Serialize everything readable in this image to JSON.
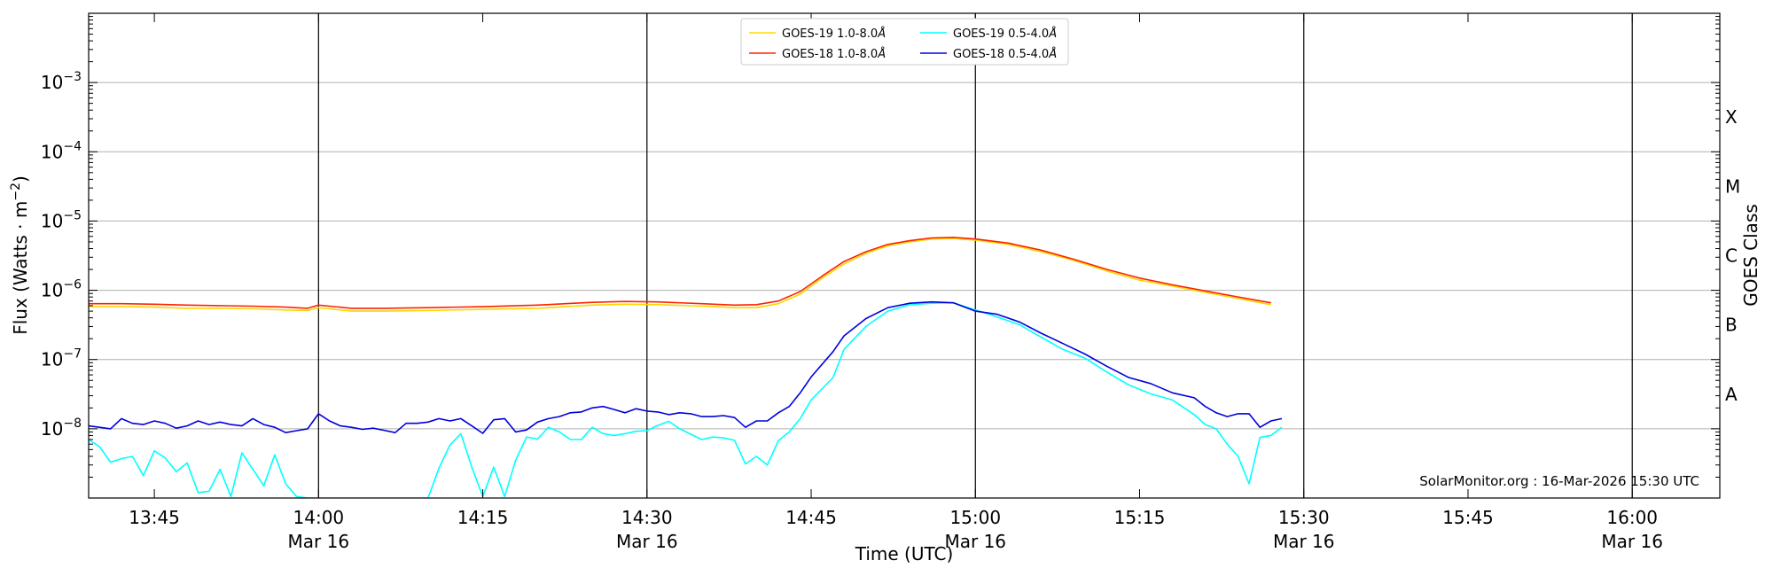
{
  "chart_data": {
    "type": "line",
    "xlabel": "Time (UTC)",
    "ylabel_base": "Flux (Watts · m",
    "ylabel_sup": "−2",
    "ylabel_close": ")",
    "right_ylabel": "GOES Class",
    "yscale": "log",
    "ylim": [
      1e-09,
      0.01
    ],
    "xlim": [
      "13:39",
      "16:08"
    ],
    "y_ticks": [
      {
        "value": 0.001,
        "label": "10",
        "sup": "−3"
      },
      {
        "value": 0.0001,
        "label": "10",
        "sup": "−4"
      },
      {
        "value": 1e-05,
        "label": "10",
        "sup": "−5"
      },
      {
        "value": 1e-06,
        "label": "10",
        "sup": "−6"
      },
      {
        "value": 1e-07,
        "label": "10",
        "sup": "−7"
      },
      {
        "value": 1e-08,
        "label": "10",
        "sup": "−8"
      }
    ],
    "x_ticks": [
      {
        "time": "13:45",
        "label": "13:45",
        "sublabel": ""
      },
      {
        "time": "14:00",
        "label": "14:00",
        "sublabel": "Mar 16"
      },
      {
        "time": "14:15",
        "label": "14:15",
        "sublabel": ""
      },
      {
        "time": "14:30",
        "label": "14:30",
        "sublabel": "Mar 16"
      },
      {
        "time": "14:45",
        "label": "14:45",
        "sublabel": ""
      },
      {
        "time": "15:00",
        "label": "15:00",
        "sublabel": "Mar 16"
      },
      {
        "time": "15:15",
        "label": "15:15",
        "sublabel": ""
      },
      {
        "time": "15:30",
        "label": "15:30",
        "sublabel": "Mar 16"
      },
      {
        "time": "15:45",
        "label": "15:45",
        "sublabel": ""
      },
      {
        "time": "16:00",
        "label": "16:00",
        "sublabel": "Mar 16"
      }
    ],
    "vertical_lines": [
      "14:00",
      "14:30",
      "15:00",
      "15:30",
      "16:00"
    ],
    "classes": [
      {
        "label": "X",
        "value": 0.0001
      },
      {
        "label": "M",
        "value": 1e-05
      },
      {
        "label": "C",
        "value": 1e-06
      },
      {
        "label": "B",
        "value": 1e-07
      },
      {
        "label": "A",
        "value": 1e-08
      }
    ],
    "grid": "horizontal",
    "legend": "top-center",
    "annotation": "SolarMonitor.org : 16-Mar-2026 15:30 UTC",
    "series": [
      {
        "name": "GOES-19 1.0-8.0Å",
        "legend_label": "GOES-19 1.0-8.0",
        "color": "#ffd700",
        "points": [
          [
            "13:39",
            5.8e-07
          ],
          [
            "13:42",
            5.8e-07
          ],
          [
            "13:45",
            5.7e-07
          ],
          [
            "13:48",
            5.5e-07
          ],
          [
            "13:51",
            5.5e-07
          ],
          [
            "13:54",
            5.4e-07
          ],
          [
            "13:57",
            5.2e-07
          ],
          [
            "13:59",
            5.1e-07
          ],
          [
            "14:00",
            5.6e-07
          ],
          [
            "14:01",
            5.4e-07
          ],
          [
            "14:03",
            5e-07
          ],
          [
            "14:06",
            5e-07
          ],
          [
            "14:10",
            5.1e-07
          ],
          [
            "14:15",
            5.3e-07
          ],
          [
            "14:20",
            5.5e-07
          ],
          [
            "14:25",
            6.1e-07
          ],
          [
            "14:28",
            6.3e-07
          ],
          [
            "14:31",
            6.2e-07
          ],
          [
            "14:35",
            5.9e-07
          ],
          [
            "14:38",
            5.6e-07
          ],
          [
            "14:40",
            5.6e-07
          ],
          [
            "14:42",
            6.4e-07
          ],
          [
            "14:44",
            8.8e-07
          ],
          [
            "14:46",
            1.5e-06
          ],
          [
            "14:48",
            2.4e-06
          ],
          [
            "14:50",
            3.4e-06
          ],
          [
            "14:52",
            4.4e-06
          ],
          [
            "14:54",
            5e-06
          ],
          [
            "14:56",
            5.5e-06
          ],
          [
            "14:58",
            5.6e-06
          ],
          [
            "15:00",
            5.3e-06
          ],
          [
            "15:03",
            4.6e-06
          ],
          [
            "15:06",
            3.6e-06
          ],
          [
            "15:09",
            2.7e-06
          ],
          [
            "15:12",
            1.9e-06
          ],
          [
            "15:15",
            1.4e-06
          ],
          [
            "15:18",
            1.15e-06
          ],
          [
            "15:21",
            9.3e-07
          ],
          [
            "15:24",
            7.6e-07
          ],
          [
            "15:27",
            6.2e-07
          ]
        ]
      },
      {
        "name": "GOES-18 1.0-8.0Å",
        "legend_label": "GOES-18 1.0-8.0",
        "color": "#ff2200",
        "points": [
          [
            "13:39",
            6.4e-07
          ],
          [
            "13:42",
            6.4e-07
          ],
          [
            "13:45",
            6.3e-07
          ],
          [
            "13:48",
            6.1e-07
          ],
          [
            "13:51",
            6e-07
          ],
          [
            "13:54",
            5.9e-07
          ],
          [
            "13:57",
            5.7e-07
          ],
          [
            "13:59",
            5.5e-07
          ],
          [
            "14:00",
            6.1e-07
          ],
          [
            "14:01",
            5.9e-07
          ],
          [
            "14:03",
            5.5e-07
          ],
          [
            "14:06",
            5.5e-07
          ],
          [
            "14:10",
            5.6e-07
          ],
          [
            "14:15",
            5.8e-07
          ],
          [
            "14:20",
            6.1e-07
          ],
          [
            "14:25",
            6.7e-07
          ],
          [
            "14:28",
            6.9e-07
          ],
          [
            "14:31",
            6.8e-07
          ],
          [
            "14:35",
            6.4e-07
          ],
          [
            "14:38",
            6.1e-07
          ],
          [
            "14:40",
            6.2e-07
          ],
          [
            "14:42",
            7e-07
          ],
          [
            "14:44",
            9.6e-07
          ],
          [
            "14:46",
            1.6e-06
          ],
          [
            "14:48",
            2.6e-06
          ],
          [
            "14:50",
            3.6e-06
          ],
          [
            "14:52",
            4.6e-06
          ],
          [
            "14:54",
            5.2e-06
          ],
          [
            "14:56",
            5.7e-06
          ],
          [
            "14:58",
            5.8e-06
          ],
          [
            "15:00",
            5.5e-06
          ],
          [
            "15:03",
            4.8e-06
          ],
          [
            "15:06",
            3.8e-06
          ],
          [
            "15:09",
            2.8e-06
          ],
          [
            "15:12",
            2e-06
          ],
          [
            "15:15",
            1.5e-06
          ],
          [
            "15:18",
            1.2e-06
          ],
          [
            "15:21",
            9.8e-07
          ],
          [
            "15:24",
            8e-07
          ],
          [
            "15:27",
            6.6e-07
          ]
        ]
      },
      {
        "name": "GOES-19 0.5-4.0Å",
        "legend_label": "GOES-19 0.5-4.0",
        "color": "#00ffff",
        "points": [
          [
            "13:39",
            7e-09
          ],
          [
            "13:40",
            5.5e-09
          ],
          [
            "13:41",
            3.3e-09
          ],
          [
            "13:42",
            3.7e-09
          ],
          [
            "13:43",
            4e-09
          ],
          [
            "13:44",
            2.1e-09
          ],
          [
            "13:45",
            4.8e-09
          ],
          [
            "13:46",
            3.8e-09
          ],
          [
            "13:47",
            2.4e-09
          ],
          [
            "13:48",
            3.2e-09
          ],
          [
            "13:49",
            1.2e-09
          ],
          [
            "13:50",
            1.25e-09
          ],
          [
            "13:51",
            2.6e-09
          ],
          [
            "13:52",
            1.05e-09
          ],
          [
            "13:53",
            4.5e-09
          ],
          [
            "13:54",
            2.6e-09
          ],
          [
            "13:55",
            1.5e-09
          ],
          [
            "13:56",
            4.2e-09
          ],
          [
            "13:57",
            1.6e-09
          ],
          [
            "13:58",
            1.05e-09
          ],
          [
            "13:59",
            1e-09
          ],
          [
            "14:05",
            1e-09
          ],
          [
            "14:10",
            1e-09
          ],
          [
            "14:11",
            2.7e-09
          ],
          [
            "14:12",
            5.8e-09
          ],
          [
            "14:13",
            8.5e-09
          ],
          [
            "14:14",
            2.8e-09
          ],
          [
            "14:15",
            1.05e-09
          ],
          [
            "14:16",
            2.8e-09
          ],
          [
            "14:17",
            1.05e-09
          ],
          [
            "14:18",
            3.5e-09
          ],
          [
            "14:19",
            7.6e-09
          ],
          [
            "14:20",
            7.1e-09
          ],
          [
            "14:21",
            1.05e-08
          ],
          [
            "14:22",
            9e-09
          ],
          [
            "14:23",
            7e-09
          ],
          [
            "14:24",
            7e-09
          ],
          [
            "14:25",
            1.05e-08
          ],
          [
            "14:26",
            8.5e-09
          ],
          [
            "14:27",
            8e-09
          ],
          [
            "14:28",
            8.5e-09
          ],
          [
            "14:29",
            9.2e-09
          ],
          [
            "14:30",
            9.4e-09
          ],
          [
            "14:31",
            1.12e-08
          ],
          [
            "14:32",
            1.28e-08
          ],
          [
            "14:33",
            1e-08
          ],
          [
            "14:35",
            7e-09
          ],
          [
            "14:36",
            7.6e-09
          ],
          [
            "14:37",
            7.4e-09
          ],
          [
            "14:38",
            6.8e-09
          ],
          [
            "14:39",
            3.1e-09
          ],
          [
            "14:40",
            4e-09
          ],
          [
            "14:41",
            3e-09
          ],
          [
            "14:42",
            6.7e-09
          ],
          [
            "14:43",
            9e-09
          ],
          [
            "14:44",
            1.4e-08
          ],
          [
            "14:45",
            2.6e-08
          ],
          [
            "14:47",
            5.5e-08
          ],
          [
            "14:48",
            1.4e-07
          ],
          [
            "14:50",
            3e-07
          ],
          [
            "14:52",
            5e-07
          ],
          [
            "14:54",
            6.2e-07
          ],
          [
            "14:56",
            6.5e-07
          ],
          [
            "14:58",
            6.6e-07
          ],
          [
            "15:00",
            5.2e-07
          ],
          [
            "15:02",
            4.1e-07
          ],
          [
            "15:04",
            3.2e-07
          ],
          [
            "15:06",
            2.1e-07
          ],
          [
            "15:08",
            1.4e-07
          ],
          [
            "15:10",
            1.05e-07
          ],
          [
            "15:12",
            6.6e-08
          ],
          [
            "15:14",
            4.3e-08
          ],
          [
            "15:16",
            3.2e-08
          ],
          [
            "15:18",
            2.6e-08
          ],
          [
            "15:20",
            1.6e-08
          ],
          [
            "15:21",
            1.15e-08
          ],
          [
            "15:22",
            1e-08
          ],
          [
            "15:23",
            6e-09
          ],
          [
            "15:24",
            4e-09
          ],
          [
            "15:25",
            1.6e-09
          ],
          [
            "15:26",
            7.5e-09
          ],
          [
            "15:27",
            8e-09
          ],
          [
            "15:28",
            1.05e-08
          ]
        ]
      },
      {
        "name": "GOES-18 0.5-4.0Å",
        "legend_label": "GOES-18 0.5-4.0",
        "color": "#0000dd",
        "points": [
          [
            "13:39",
            1.1e-08
          ],
          [
            "13:40",
            1.05e-08
          ],
          [
            "13:41",
            1e-08
          ],
          [
            "13:42",
            1.4e-08
          ],
          [
            "13:43",
            1.2e-08
          ],
          [
            "13:44",
            1.15e-08
          ],
          [
            "13:45",
            1.3e-08
          ],
          [
            "13:46",
            1.2e-08
          ],
          [
            "13:47",
            1.02e-08
          ],
          [
            "13:48",
            1.1e-08
          ],
          [
            "13:49",
            1.3e-08
          ],
          [
            "13:50",
            1.15e-08
          ],
          [
            "13:51",
            1.25e-08
          ],
          [
            "13:52",
            1.15e-08
          ],
          [
            "13:53",
            1.1e-08
          ],
          [
            "13:54",
            1.4e-08
          ],
          [
            "13:55",
            1.15e-08
          ],
          [
            "13:56",
            1.05e-08
          ],
          [
            "13:57",
            8.8e-09
          ],
          [
            "13:58",
            9.4e-09
          ],
          [
            "13:59",
            1e-08
          ],
          [
            "14:00",
            1.65e-08
          ],
          [
            "14:01",
            1.3e-08
          ],
          [
            "14:02",
            1.1e-08
          ],
          [
            "14:03",
            1.05e-08
          ],
          [
            "14:04",
            9.8e-09
          ],
          [
            "14:05",
            1.02e-08
          ],
          [
            "14:06",
            9.5e-09
          ],
          [
            "14:07",
            8.8e-09
          ],
          [
            "14:08",
            1.2e-08
          ],
          [
            "14:09",
            1.2e-08
          ],
          [
            "14:10",
            1.25e-08
          ],
          [
            "14:11",
            1.4e-08
          ],
          [
            "14:12",
            1.3e-08
          ],
          [
            "14:13",
            1.4e-08
          ],
          [
            "14:14",
            1.1e-08
          ],
          [
            "14:15",
            8.6e-09
          ],
          [
            "14:16",
            1.35e-08
          ],
          [
            "14:17",
            1.4e-08
          ],
          [
            "14:18",
            9e-09
          ],
          [
            "14:19",
            9.6e-09
          ],
          [
            "14:20",
            1.25e-08
          ],
          [
            "14:21",
            1.4e-08
          ],
          [
            "14:22",
            1.5e-08
          ],
          [
            "14:23",
            1.7e-08
          ],
          [
            "14:24",
            1.75e-08
          ],
          [
            "14:25",
            2e-08
          ],
          [
            "14:26",
            2.1e-08
          ],
          [
            "14:27",
            1.9e-08
          ],
          [
            "14:28",
            1.7e-08
          ],
          [
            "14:29",
            1.95e-08
          ],
          [
            "14:30",
            1.8e-08
          ],
          [
            "14:31",
            1.75e-08
          ],
          [
            "14:32",
            1.6e-08
          ],
          [
            "14:33",
            1.7e-08
          ],
          [
            "14:34",
            1.65e-08
          ],
          [
            "14:35",
            1.5e-08
          ],
          [
            "14:36",
            1.5e-08
          ],
          [
            "14:37",
            1.55e-08
          ],
          [
            "14:38",
            1.45e-08
          ],
          [
            "14:39",
            1.05e-08
          ],
          [
            "14:40",
            1.3e-08
          ],
          [
            "14:41",
            1.3e-08
          ],
          [
            "14:42",
            1.7e-08
          ],
          [
            "14:43",
            2.1e-08
          ],
          [
            "14:44",
            3.3e-08
          ],
          [
            "14:45",
            5.6e-08
          ],
          [
            "14:47",
            1.3e-07
          ],
          [
            "14:48",
            2.2e-07
          ],
          [
            "14:50",
            3.9e-07
          ],
          [
            "14:52",
            5.6e-07
          ],
          [
            "14:54",
            6.5e-07
          ],
          [
            "14:56",
            6.8e-07
          ],
          [
            "14:58",
            6.6e-07
          ],
          [
            "15:00",
            5e-07
          ],
          [
            "15:02",
            4.5e-07
          ],
          [
            "15:04",
            3.5e-07
          ],
          [
            "15:06",
            2.4e-07
          ],
          [
            "15:08",
            1.7e-07
          ],
          [
            "15:10",
            1.2e-07
          ],
          [
            "15:12",
            8e-08
          ],
          [
            "15:14",
            5.5e-08
          ],
          [
            "15:16",
            4.5e-08
          ],
          [
            "15:18",
            3.3e-08
          ],
          [
            "15:20",
            2.8e-08
          ],
          [
            "15:21",
            2.1e-08
          ],
          [
            "15:22",
            1.7e-08
          ],
          [
            "15:23",
            1.5e-08
          ],
          [
            "15:24",
            1.65e-08
          ],
          [
            "15:25",
            1.65e-08
          ],
          [
            "15:26",
            1.05e-08
          ],
          [
            "15:27",
            1.3e-08
          ],
          [
            "15:28",
            1.4e-08
          ]
        ]
      }
    ]
  }
}
